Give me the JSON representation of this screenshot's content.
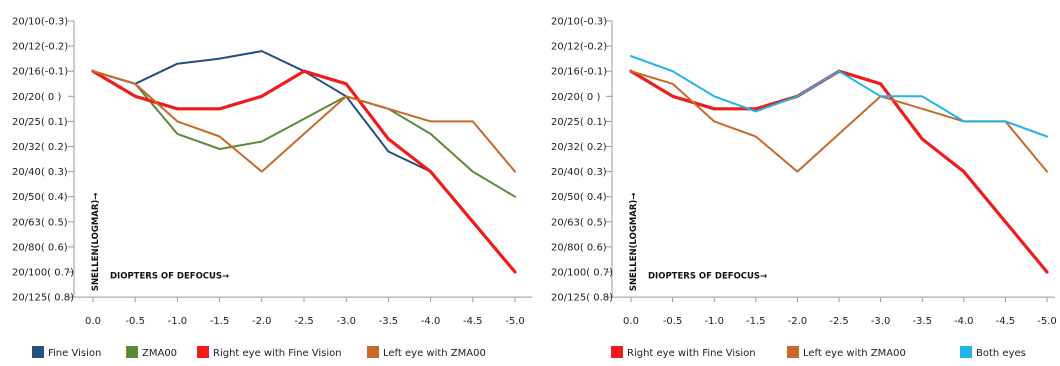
{
  "chart_data": [
    {
      "type": "line",
      "xlabel": "DIOPTERS OF DEFOCUS→",
      "ylabel": "SNELLEN(LOGMAR)→",
      "x": [
        "0.0",
        "-0.5",
        "-1.0",
        "-1.5",
        "-2.0",
        "-2.5",
        "-3.0",
        "-3.5",
        "-4.0",
        "-4.5",
        "-5.0"
      ],
      "x_values": [
        0.0,
        -0.5,
        -1.0,
        -1.5,
        -2.0,
        -2.5,
        -3.0,
        -3.5,
        -4.0,
        -4.5,
        -5.0
      ],
      "y_ticks": [
        {
          "label": "20/10(-0.3)",
          "value": -0.3
        },
        {
          "label": "20/12(-0.2)",
          "value": -0.2
        },
        {
          "label": "20/16(-0.1)",
          "value": -0.1
        },
        {
          "label": "20/20( 0 )",
          "value": 0.0
        },
        {
          "label": "20/25( 0.1)",
          "value": 0.1
        },
        {
          "label": "20/32( 0.2)",
          "value": 0.2
        },
        {
          "label": "20/40( 0.3)",
          "value": 0.3
        },
        {
          "label": "20/50( 0.4)",
          "value": 0.4
        },
        {
          "label": "20/63( 0.5)",
          "value": 0.5
        },
        {
          "label": "20/80( 0.6)",
          "value": 0.6
        },
        {
          "label": "20/100( 0.7)",
          "value": 0.7
        },
        {
          "label": "20/125( 0.8)",
          "value": 0.8
        }
      ],
      "ylim": [
        -0.3,
        0.8
      ],
      "y_inverted": true,
      "grid": false,
      "legend_position": "bottom",
      "series": [
        {
          "name": "Fine Vision",
          "color": "#24507f",
          "width": 2,
          "values": [
            -0.1,
            -0.05,
            -0.13,
            -0.15,
            -0.18,
            -0.1,
            0.0,
            0.22,
            0.3,
            0.5,
            0.7
          ]
        },
        {
          "name": "ZMA00",
          "color": "#5a8a3a",
          "width": 2,
          "values": [
            -0.1,
            -0.05,
            0.15,
            0.21,
            0.18,
            0.09,
            0.0,
            0.05,
            0.15,
            0.3,
            0.4
          ]
        },
        {
          "name": "Right eye with Fine Vision",
          "color": "#ee1c1c",
          "width": 3.2,
          "values": [
            -0.1,
            0.0,
            0.05,
            0.05,
            0.0,
            -0.1,
            -0.05,
            0.17,
            0.3,
            0.5,
            0.7
          ]
        },
        {
          "name": "Left eye with ZMA00",
          "color": "#c8692a",
          "width": 2,
          "values": [
            -0.1,
            -0.05,
            0.1,
            0.16,
            0.3,
            0.15,
            0.0,
            0.05,
            0.1,
            0.1,
            0.3
          ]
        }
      ]
    },
    {
      "type": "line",
      "xlabel": "DIOPTERS OF DEFOCUS→",
      "ylabel": "SNELLEN(LOGMAR)→",
      "x": [
        "0.0",
        "-0.5",
        "-1.0",
        "-1.5",
        "-2.0",
        "-2.5",
        "-3.0",
        "-3.5",
        "-4.0",
        "-4.5",
        "-5.0"
      ],
      "x_values": [
        0.0,
        -0.5,
        -1.0,
        -1.5,
        -2.0,
        -2.5,
        -3.0,
        -3.5,
        -4.0,
        -4.5,
        -5.0
      ],
      "y_ticks": [
        {
          "label": "20/10(-0.3)",
          "value": -0.3
        },
        {
          "label": "20/12(-0.2)",
          "value": -0.2
        },
        {
          "label": "20/16(-0.1)",
          "value": -0.1
        },
        {
          "label": "20/20( 0 )",
          "value": 0.0
        },
        {
          "label": "20/25( 0.1)",
          "value": 0.1
        },
        {
          "label": "20/32( 0.2)",
          "value": 0.2
        },
        {
          "label": "20/40( 0.3)",
          "value": 0.3
        },
        {
          "label": "20/50( 0.4)",
          "value": 0.4
        },
        {
          "label": "20/63( 0.5)",
          "value": 0.5
        },
        {
          "label": "20/80( 0.6)",
          "value": 0.6
        },
        {
          "label": "20/100( 0.7)",
          "value": 0.7
        },
        {
          "label": "20/125( 0.8)",
          "value": 0.8
        }
      ],
      "ylim": [
        -0.3,
        0.8
      ],
      "y_inverted": true,
      "grid": false,
      "legend_position": "bottom",
      "series": [
        {
          "name": "Right eye with Fine Vision",
          "color": "#ee1c1c",
          "width": 3.2,
          "values": [
            -0.1,
            0.0,
            0.05,
            0.05,
            0.0,
            -0.1,
            -0.05,
            0.17,
            0.3,
            0.5,
            0.7
          ]
        },
        {
          "name": "Left eye with ZMA00",
          "color": "#c8692a",
          "width": 2,
          "values": [
            -0.1,
            -0.05,
            0.1,
            0.16,
            0.3,
            0.15,
            0.0,
            0.05,
            0.1,
            0.1,
            0.3
          ]
        },
        {
          "name": "Both eyes",
          "color": "#1fb3e8",
          "width": 2,
          "values": [
            -0.16,
            -0.1,
            0.0,
            0.06,
            0.0,
            -0.1,
            0.0,
            0.0,
            0.1,
            0.1,
            0.16
          ]
        }
      ]
    }
  ]
}
